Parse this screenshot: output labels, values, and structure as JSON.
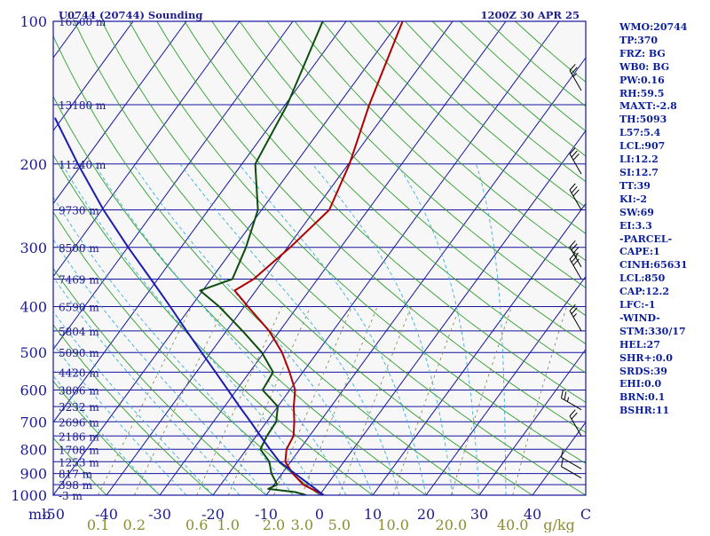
{
  "header": {
    "station": "U0744 (20744) Sounding",
    "time": "1200Z 30 APR 25"
  },
  "indices": [
    "WMO:20744",
    "TP:370",
    "FRZ: BG",
    "WB0: BG",
    "PW:0.16",
    "RH:59.5",
    "MAXT:-2.8",
    "TH:5093",
    "L57:5.4",
    "LCL:907",
    "LI:12.2",
    "SI:12.7",
    "TT:39",
    "KI:-2",
    "SW:69",
    "EI:3.3",
    "-PARCEL-",
    "CAPE:1",
    "CINH:65631",
    "LCL:850",
    "CAP:12.2",
    "LFC:-1",
    "-WIND-",
    "STM:330/17",
    "HEL:27",
    "SHR+:0.0",
    "SRDS:39",
    "EHI:0.0",
    "BRN:0.1",
    "BSHR:11"
  ],
  "colors": {
    "background": "#ffffff",
    "frame": "#1414a0",
    "isobar": "#1414a0",
    "isotherm": "#1414a0",
    "dry_adiabat": "#2e9e2e",
    "moist_adiabat": "#3ab0d8",
    "mixing_ratio": "#8c8c5a",
    "temperature": "#b00000",
    "dewpoint": "#0d4d0d",
    "parcel": "#1c1cb0",
    "axis_text": "#1c1c8c",
    "mixing_text": "#8c8c32",
    "wind": "#000000"
  },
  "chart_data": {
    "type": "line",
    "title": "U0744 (20744) Sounding",
    "subtitle": "1200Z 30 APR 25",
    "diagram": "skew-T log-P",
    "y_scale": "log (pressure)",
    "ylim": [
      1000,
      100
    ],
    "xlim": [
      -50,
      50
    ],
    "skew_degC_per_decade": 65,
    "pressure_ticks": [
      100,
      200,
      300,
      400,
      500,
      600,
      700,
      800,
      900,
      1000
    ],
    "pressure_unit": "mb",
    "height_labels": [
      {
        "label": "16500 m",
        "p": 100
      },
      {
        "label": "13180 m",
        "p": 150
      },
      {
        "label": "11240 m",
        "p": 200
      },
      {
        "label": "9730 m",
        "p": 250
      },
      {
        "label": "8500 m",
        "p": 300
      },
      {
        "label": "7469 m",
        "p": 350
      },
      {
        "label": "6590 m",
        "p": 400
      },
      {
        "label": "5804 m",
        "p": 450
      },
      {
        "label": "5090 m",
        "p": 500
      },
      {
        "label": "4420 m",
        "p": 550
      },
      {
        "label": "3806 m",
        "p": 600
      },
      {
        "label": "3232 m",
        "p": 650
      },
      {
        "label": "2696 m",
        "p": 700
      },
      {
        "label": "2186 m",
        "p": 750
      },
      {
        "label": "1708 m",
        "p": 800
      },
      {
        "label": "1253 m",
        "p": 850
      },
      {
        "label": "817 m",
        "p": 900
      },
      {
        "label": "398 m",
        "p": 950
      },
      {
        "label": "-3 m",
        "p": 1000
      }
    ],
    "temperature_ticks": [
      {
        "label": "-50",
        "t": -50
      },
      {
        "label": "-40",
        "t": -40
      },
      {
        "label": "-30",
        "t": -30
      },
      {
        "label": "-20",
        "t": -20
      },
      {
        "label": "-10",
        "t": -10
      },
      {
        "label": "0",
        "t": 0
      },
      {
        "label": "10",
        "t": 10
      },
      {
        "label": "20",
        "t": 20
      },
      {
        "label": "30",
        "t": 30
      },
      {
        "label": "40",
        "t": 40
      },
      {
        "label": "C",
        "t": 50
      }
    ],
    "mixing_ratio_labels": [
      "0.1",
      "0.2",
      "0.6",
      "1.0",
      "2.0",
      "3.0",
      "5.0",
      "10.0",
      "20.0",
      "40.0"
    ],
    "mixing_ratio_values": [
      0.1,
      0.2,
      0.6,
      1.0,
      2.0,
      3.0,
      5.0,
      10.0,
      20.0,
      40.0
    ],
    "mixing_ratio_unit": "g/kg",
    "series": [
      {
        "name": "Temperature",
        "points": [
          {
            "p": 1000,
            "t": 0.8
          },
          {
            "p": 950,
            "t": -4.5
          },
          {
            "p": 900,
            "t": -8
          },
          {
            "p": 850,
            "t": -11
          },
          {
            "p": 800,
            "t": -12.5
          },
          {
            "p": 750,
            "t": -13
          },
          {
            "p": 700,
            "t": -14.8
          },
          {
            "p": 650,
            "t": -17
          },
          {
            "p": 600,
            "t": -19
          },
          {
            "p": 550,
            "t": -22.5
          },
          {
            "p": 500,
            "t": -26.6
          },
          {
            "p": 450,
            "t": -32
          },
          {
            "p": 400,
            "t": -39.3
          },
          {
            "p": 370,
            "t": -44
          },
          {
            "p": 350,
            "t": -42
          },
          {
            "p": 300,
            "t": -39.5
          },
          {
            "p": 250,
            "t": -37.3
          },
          {
            "p": 200,
            "t": -39.8
          },
          {
            "p": 150,
            "t": -44.2
          },
          {
            "p": 100,
            "t": -49.4
          }
        ]
      },
      {
        "name": "Dewpoint",
        "points": [
          {
            "p": 1000,
            "t": -2.5
          },
          {
            "p": 985,
            "t": -5
          },
          {
            "p": 970,
            "t": -10.5
          },
          {
            "p": 950,
            "t": -9.4
          },
          {
            "p": 900,
            "t": -12
          },
          {
            "p": 850,
            "t": -14
          },
          {
            "p": 800,
            "t": -17.4
          },
          {
            "p": 750,
            "t": -18
          },
          {
            "p": 700,
            "t": -18.2
          },
          {
            "p": 650,
            "t": -20
          },
          {
            "p": 600,
            "t": -25.1
          },
          {
            "p": 550,
            "t": -25.6
          },
          {
            "p": 500,
            "t": -30.4
          },
          {
            "p": 450,
            "t": -37
          },
          {
            "p": 400,
            "t": -44.7
          },
          {
            "p": 370,
            "t": -50.5
          },
          {
            "p": 350,
            "t": -46
          },
          {
            "p": 300,
            "t": -47.8
          },
          {
            "p": 250,
            "t": -50.7
          },
          {
            "p": 200,
            "t": -57.5
          },
          {
            "p": 150,
            "t": -59.6
          },
          {
            "p": 100,
            "t": -64.4
          }
        ]
      },
      {
        "name": "Parcel",
        "points": [
          {
            "p": 1000,
            "t": 0.8
          },
          {
            "p": 950,
            "t": -3.3
          },
          {
            "p": 900,
            "t": -7.6
          },
          {
            "p": 850,
            "t": -12.1
          },
          {
            "p": 800,
            "t": -15.6
          },
          {
            "p": 750,
            "t": -19.2
          },
          {
            "p": 700,
            "t": -23
          },
          {
            "p": 650,
            "t": -27.2
          },
          {
            "p": 600,
            "t": -31.6
          },
          {
            "p": 550,
            "t": -36.4
          },
          {
            "p": 500,
            "t": -41.7
          },
          {
            "p": 450,
            "t": -47.5
          },
          {
            "p": 400,
            "t": -53.9
          },
          {
            "p": 350,
            "t": -61.3
          },
          {
            "p": 300,
            "t": -69.9
          },
          {
            "p": 250,
            "t": -79.7
          },
          {
            "p": 200,
            "t": -90.8
          },
          {
            "p": 160,
            "t": -101.4
          }
        ]
      }
    ],
    "wind_barbs": [
      {
        "p": 140,
        "dir": 330,
        "kt": 25
      },
      {
        "p": 210,
        "dir": 330,
        "kt": 30
      },
      {
        "p": 250,
        "dir": 330,
        "kt": 30
      },
      {
        "p": 330,
        "dir": 330,
        "kt": 35
      },
      {
        "p": 350,
        "dir": 330,
        "kt": 30
      },
      {
        "p": 450,
        "dir": 330,
        "kt": 25
      },
      {
        "p": 660,
        "dir": 300,
        "kt": 25
      },
      {
        "p": 750,
        "dir": 330,
        "kt": 20
      },
      {
        "p": 880,
        "dir": 300,
        "kt": 10
      },
      {
        "p": 920,
        "dir": 300,
        "kt": 10
      }
    ]
  }
}
